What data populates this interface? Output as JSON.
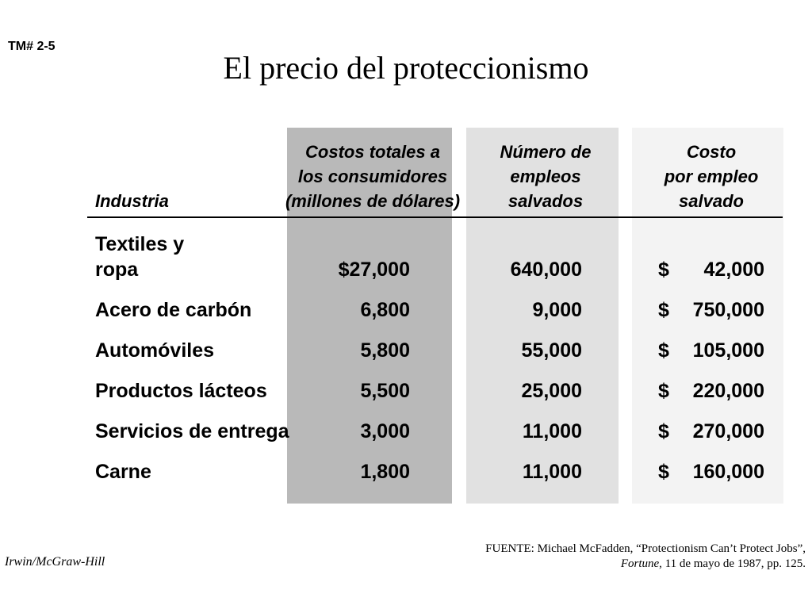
{
  "slide_id": "TM# 2-5",
  "title": "El precio del proteccionismo",
  "headers": {
    "industry": "Industria",
    "total_cost": "Costos totales a\nlos consumidores\n(millones de dólares)",
    "jobs_saved": "Número de\nempleos\nsalvados",
    "cost_per_job": "Costo\npor empleo\nsalvado"
  },
  "rows": [
    {
      "industry": "Textiles y\nropa",
      "total_cost": "$27,000",
      "jobs_saved": "640,000",
      "dollar": "$",
      "cost_per_job": "42,000"
    },
    {
      "industry": "Acero de carbón",
      "total_cost": "6,800",
      "jobs_saved": "9,000",
      "dollar": "$",
      "cost_per_job": "750,000"
    },
    {
      "industry": "Automóviles",
      "total_cost": "5,800",
      "jobs_saved": "55,000",
      "dollar": "$",
      "cost_per_job": "105,000"
    },
    {
      "industry": "Productos lácteos",
      "total_cost": "5,500",
      "jobs_saved": "25,000",
      "dollar": "$",
      "cost_per_job": "220,000"
    },
    {
      "industry": "Servicios de entrega",
      "total_cost": "3,000",
      "jobs_saved": "11,000",
      "dollar": "$",
      "cost_per_job": "270,000"
    },
    {
      "industry": "Carne",
      "total_cost": "1,800",
      "jobs_saved": "11,000",
      "dollar": "$",
      "cost_per_job": "160,000"
    }
  ],
  "publisher": "Irwin/McGraw-Hill",
  "source": {
    "prefix": "FUENTE: Michael McFadden, “Protectionism Can’t Protect Jobs”, ",
    "journal": "Fortune",
    "suffix": ", 11 de mayo de 1987, pp. 125."
  },
  "colors": {
    "band_total": "#b9b9b9",
    "band_jobs": "#e1e1e1",
    "band_cost": "#f3f3f3"
  }
}
